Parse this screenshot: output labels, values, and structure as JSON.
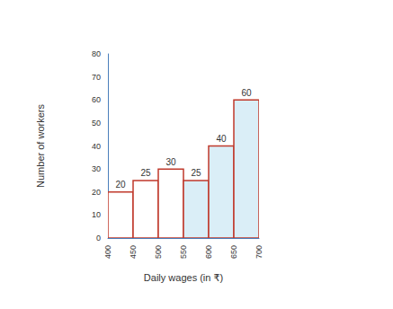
{
  "chart_data": {
    "type": "histogram",
    "bins": [
      400,
      450,
      500,
      550,
      600,
      650,
      700
    ],
    "values": [
      20,
      25,
      30,
      25,
      40,
      60
    ],
    "colors": [
      "#ffffff",
      "#ffffff",
      "#ffffff",
      "#daeef7",
      "#daeef7",
      "#daeef7"
    ],
    "xlabel": "Daily wages (in ₹)",
    "ylabel": "Number of workers",
    "xlim": [
      400,
      700
    ],
    "xticks": [
      400,
      450,
      500,
      550,
      600,
      650,
      700
    ],
    "ylim": [
      0,
      80
    ],
    "yticks": [
      0,
      10,
      20,
      30,
      40,
      50,
      60,
      70,
      80
    ],
    "grid": false,
    "data_labels": true
  }
}
